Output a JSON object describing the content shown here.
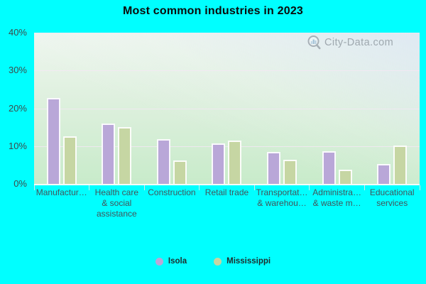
{
  "title": "Most common industries in 2023",
  "watermark": {
    "text": "City-Data.com"
  },
  "legend": [
    {
      "label": "Isola"
    },
    {
      "label": "Mississippi"
    }
  ],
  "y_axis": {
    "tick_labels": [
      "40%",
      "30%",
      "20%",
      "10%",
      "0%"
    ]
  },
  "colors": {
    "background": "#00ffff",
    "isola_bar": "#b9a7d8",
    "mississippi_bar": "#c6d6a3",
    "bar_border": "#ffffff",
    "gridline": "#f3e7f3",
    "plot_top": "#eff6ef",
    "plot_bottom": "#c8ebca",
    "axis_text": "#3d4b4b",
    "watermark_text": "#8e979e"
  },
  "chart_data": {
    "type": "bar",
    "title": "Most common industries in 2023",
    "categories": [
      "Manufactur…",
      "Health care & social assistance",
      "Construction",
      "Retail trade",
      "Transportat… & warehou…",
      "Administra… & waste m…",
      "Educational services"
    ],
    "category_label_lines": [
      [
        "Manufactur…"
      ],
      [
        "Health care",
        "& social",
        "assistance"
      ],
      [
        "Construction"
      ],
      [
        "Retail trade"
      ],
      [
        "Transportat…",
        "& warehou…"
      ],
      [
        "Administra…",
        "& waste m…"
      ],
      [
        "Educational",
        "services"
      ]
    ],
    "series": [
      {
        "name": "Isola",
        "color": "#b9a7d8",
        "values": [
          22.7,
          16.0,
          11.8,
          10.7,
          8.5,
          8.6,
          5.2
        ]
      },
      {
        "name": "Mississippi",
        "color": "#c6d6a3",
        "values": [
          12.5,
          15.0,
          6.2,
          11.5,
          6.4,
          3.7,
          10.1
        ]
      }
    ],
    "xlabel": "",
    "ylabel": "",
    "ylim": [
      0,
      40
    ],
    "y_ticks": [
      0,
      10,
      20,
      30,
      40
    ],
    "y_tick_format": "percent",
    "grid": "horizontal",
    "legend_position": "bottom"
  }
}
